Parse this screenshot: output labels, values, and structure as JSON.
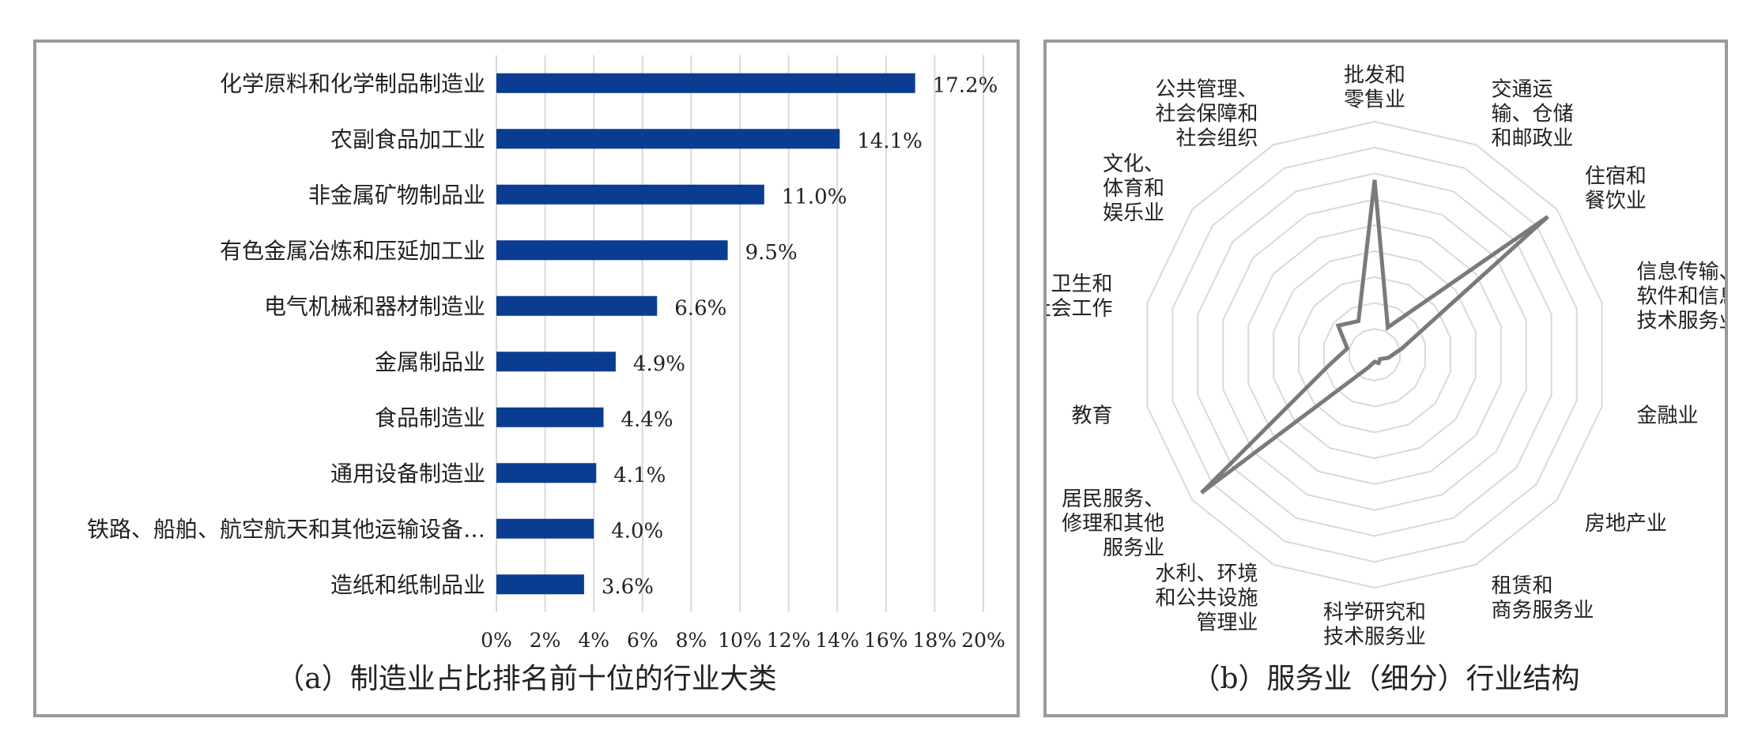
{
  "chart_data": [
    {
      "type": "bar",
      "orientation": "horizontal",
      "categories": [
        "化学原料和化学制品制造业",
        "农副食品加工业",
        "非金属矿物制品业",
        "有色金属冶炼和压延加工业",
        "电气机械和器材制造业",
        "金属制品业",
        "食品制造业",
        "通用设备制造业",
        "铁路、船舶、航空航天和其他运输设备…",
        "造纸和纸制品业"
      ],
      "values": [
        17.2,
        14.1,
        11.0,
        9.5,
        6.6,
        4.9,
        4.4,
        4.1,
        4.0,
        3.6
      ],
      "data_labels": [
        "17.2%",
        "14.1%",
        "11.0%",
        "9.5%",
        "6.6%",
        "4.9%",
        "4.4%",
        "4.1%",
        "4.0%",
        "3.6%"
      ],
      "xlim": [
        0,
        20
      ],
      "x_ticks": [
        "0%",
        "2%",
        "4%",
        "6%",
        "8%",
        "10%",
        "12%",
        "14%",
        "16%",
        "18%",
        "20%"
      ],
      "grid": "vertical",
      "bar_color": "#0a3d91",
      "caption": "（a）制造业占比排名前十位的行业大类"
    },
    {
      "type": "radar",
      "categories": [
        [
          "批发和",
          "零售业"
        ],
        [
          "交通运",
          "输、仓储",
          "和邮政业"
        ],
        [
          "住宿和",
          "餐饮业"
        ],
        [
          "信息传输、",
          "软件和信息",
          "技术服务业"
        ],
        [
          "金融业"
        ],
        [
          "房地产业"
        ],
        [
          "租赁和",
          "商务服务业"
        ],
        [
          "科学研究和",
          "技术服务业"
        ],
        [
          "水利、环境",
          "和公共设施",
          "管理业"
        ],
        [
          "居民服务、",
          "修理和其他",
          "服务业"
        ],
        [
          "教育"
        ],
        [
          "卫生和",
          "社会工作"
        ],
        [
          "文化、",
          "体育和",
          "娱乐业"
        ],
        [
          "公共管理、",
          "社会保障和",
          "社会组织"
        ]
      ],
      "values": [
        0.75,
        0.13,
        0.95,
        0.12,
        0.06,
        0.03,
        0.04,
        0.03,
        0.06,
        0.95,
        0.2,
        0.12,
        0.2,
        0.16
      ],
      "rmax": 1.0,
      "grid_levels": 9,
      "line_color": "#7a7a7a",
      "grid_color": "#d9d9d9",
      "caption": "（b）服务业（细分）行业结构"
    }
  ]
}
